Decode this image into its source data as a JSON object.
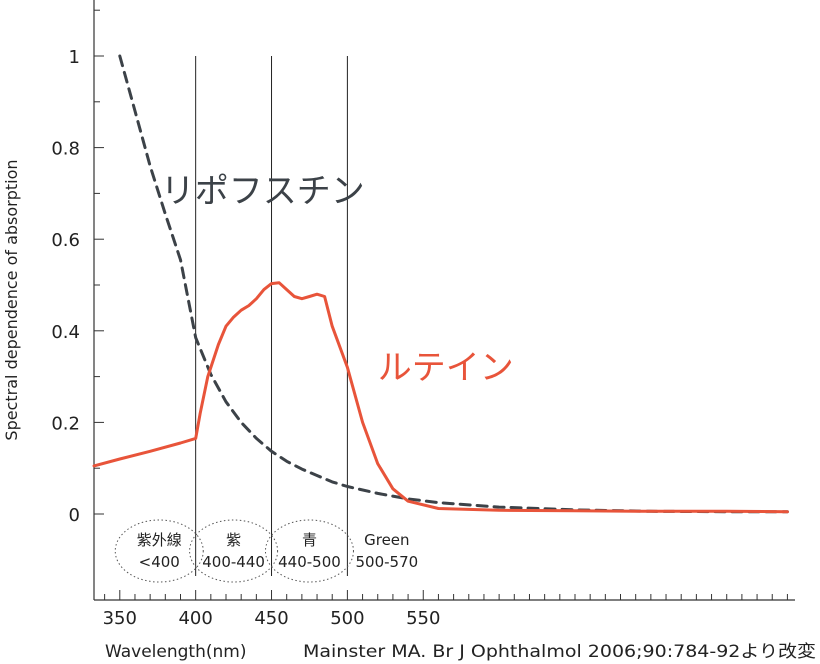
{
  "chart_data": {
    "type": "line",
    "xlabel": "Wavelength(nm)",
    "ylabel": "Spectral dependence of absorption",
    "source_note": "Mainster MA. Br J Ophthalmol 2006;90:784-92より改変",
    "xlim": [
      333,
      795
    ],
    "ylim": [
      0,
      1.1
    ],
    "x_ticks": [
      350,
      400,
      450,
      500,
      550
    ],
    "y_ticks": [
      {
        "value": 0,
        "label": "0"
      },
      {
        "value": 0.2,
        "label": "0.2"
      },
      {
        "value": 0.4,
        "label": "0.4"
      },
      {
        "value": 0.6,
        "label": "0.6"
      },
      {
        "value": 0.8,
        "label": "0.8"
      },
      {
        "value": 1.0,
        "label": "1"
      }
    ],
    "band_boundaries": [
      400,
      450,
      500
    ],
    "bands": [
      {
        "line1": "紫外線",
        "line2": "<400",
        "center_x": 376,
        "circled": true
      },
      {
        "line1": "紫",
        "line2": "400-440",
        "center_x": 425,
        "circled": true
      },
      {
        "line1": "青",
        "line2": "440-500",
        "center_x": 475,
        "circled": true
      },
      {
        "line1": "Green",
        "line2": "500-570",
        "center_x": 526,
        "circled": false
      }
    ],
    "series": [
      {
        "name": "リポフスチン",
        "color": "#3c4248",
        "style": "dashed",
        "x": [
          350,
          360,
          370,
          380,
          390,
          400,
          410,
          420,
          430,
          440,
          450,
          460,
          470,
          480,
          490,
          500,
          520,
          540,
          560,
          600,
          650,
          700,
          750,
          790
        ],
        "y": [
          1.0,
          0.88,
          0.76,
          0.655,
          0.555,
          0.385,
          0.305,
          0.245,
          0.2,
          0.165,
          0.137,
          0.115,
          0.098,
          0.084,
          0.07,
          0.06,
          0.045,
          0.033,
          0.025,
          0.015,
          0.009,
          0.006,
          0.005,
          0.005
        ],
        "label_x": 377,
        "label_y": 0.68
      },
      {
        "name": "ルテイン",
        "color": "#e8543a",
        "style": "solid",
        "x": [
          333,
          350,
          370,
          390,
          400,
          403,
          408,
          415,
          420,
          425,
          430,
          435,
          440,
          445,
          450,
          455,
          460,
          465,
          470,
          475,
          480,
          485,
          490,
          500,
          510,
          520,
          530,
          540,
          560,
          600,
          650,
          700,
          750,
          790
        ],
        "y": [
          0.105,
          0.12,
          0.137,
          0.155,
          0.165,
          0.22,
          0.3,
          0.37,
          0.41,
          0.43,
          0.445,
          0.455,
          0.47,
          0.49,
          0.503,
          0.505,
          0.49,
          0.475,
          0.47,
          0.475,
          0.48,
          0.475,
          0.41,
          0.32,
          0.2,
          0.11,
          0.055,
          0.028,
          0.012,
          0.008,
          0.007,
          0.006,
          0.006,
          0.005
        ],
        "label_x": 520,
        "label_y": 0.295
      }
    ]
  }
}
